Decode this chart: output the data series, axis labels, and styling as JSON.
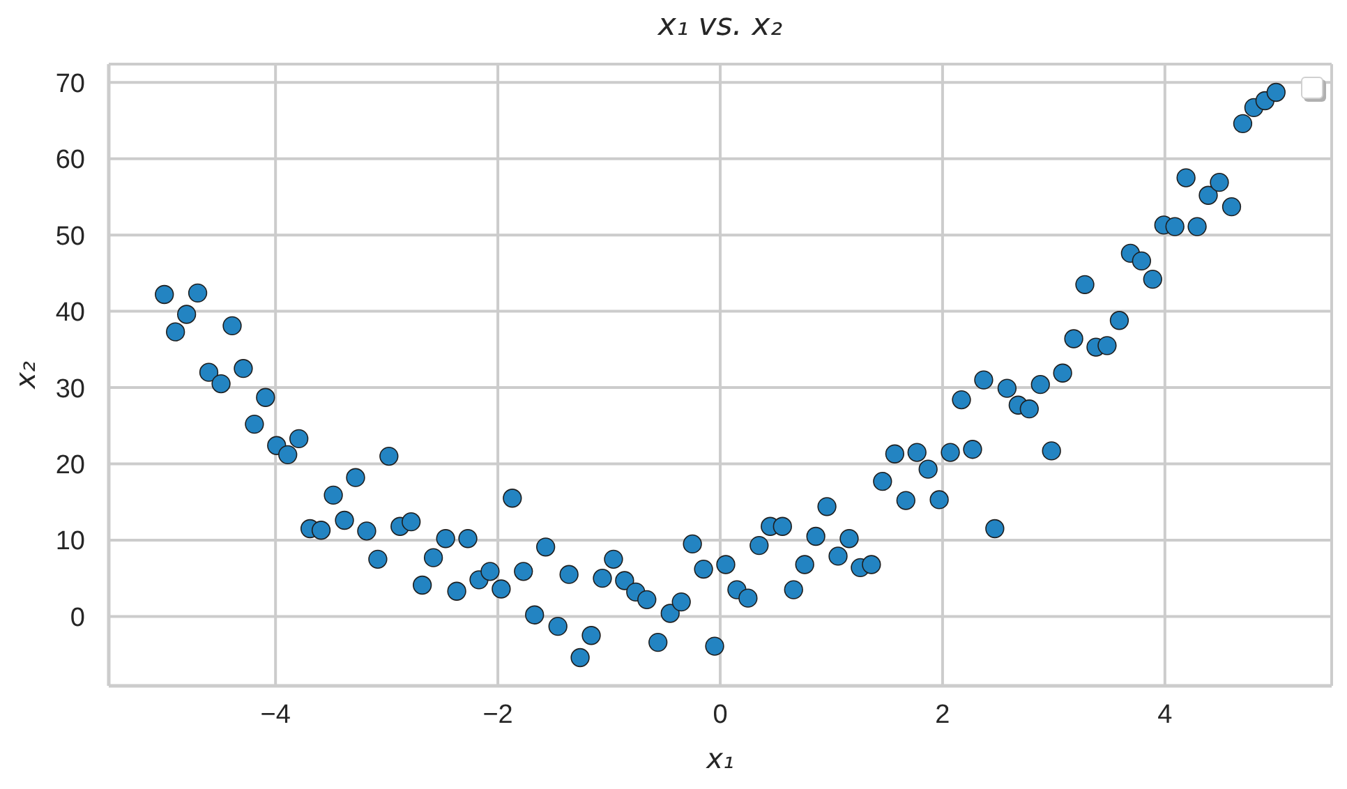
{
  "chart_data": {
    "type": "scatter",
    "title": "x₁ vs. x₂",
    "xlabel": "x₁",
    "ylabel": "x₂",
    "x": [
      -5.0,
      -4.9,
      -4.8,
      -4.7,
      -4.6,
      -4.49,
      -4.39,
      -4.29,
      -4.19,
      -4.09,
      -3.99,
      -3.89,
      -3.79,
      -3.69,
      -3.59,
      -3.48,
      -3.38,
      -3.28,
      -3.18,
      -3.08,
      -2.98,
      -2.88,
      -2.78,
      -2.68,
      -2.58,
      -2.47,
      -2.37,
      -2.27,
      -2.17,
      -2.07,
      -1.97,
      -1.87,
      -1.77,
      -1.67,
      -1.57,
      -1.46,
      -1.36,
      -1.26,
      -1.16,
      -1.06,
      -0.96,
      -0.86,
      -0.76,
      -0.66,
      -0.56,
      -0.45,
      -0.35,
      -0.25,
      -0.15,
      -0.05,
      0.05,
      0.15,
      0.25,
      0.35,
      0.45,
      0.56,
      0.66,
      0.76,
      0.86,
      0.96,
      1.06,
      1.16,
      1.26,
      1.36,
      1.46,
      1.57,
      1.67,
      1.77,
      1.87,
      1.97,
      2.07,
      2.17,
      2.27,
      2.37,
      2.47,
      2.58,
      2.68,
      2.78,
      2.88,
      2.98,
      3.08,
      3.18,
      3.28,
      3.38,
      3.48,
      3.59,
      3.69,
      3.79,
      3.89,
      3.99,
      4.09,
      4.19,
      4.29,
      4.39,
      4.49,
      4.6,
      4.7,
      4.8,
      4.9,
      5.0
    ],
    "values": [
      42.2,
      37.3,
      39.6,
      42.4,
      32.0,
      30.5,
      38.1,
      32.5,
      25.2,
      28.7,
      22.4,
      21.2,
      23.3,
      11.5,
      11.3,
      15.9,
      12.6,
      18.2,
      11.2,
      7.5,
      21.0,
      11.8,
      12.4,
      4.1,
      7.7,
      10.2,
      3.3,
      10.2,
      4.8,
      5.9,
      3.6,
      15.5,
      5.9,
      0.2,
      9.1,
      -1.3,
      5.5,
      -5.4,
      -2.5,
      5.0,
      7.5,
      4.7,
      3.2,
      2.2,
      -3.4,
      0.4,
      1.9,
      9.5,
      6.2,
      -3.9,
      6.8,
      3.5,
      2.4,
      9.3,
      11.8,
      11.8,
      3.5,
      6.8,
      10.5,
      14.4,
      7.9,
      10.2,
      6.4,
      6.8,
      17.7,
      21.3,
      15.2,
      21.5,
      19.3,
      15.3,
      21.5,
      28.4,
      21.9,
      31.0,
      11.5,
      29.9,
      27.7,
      27.2,
      30.4,
      21.7,
      31.9,
      36.4,
      43.5,
      35.3,
      35.5,
      38.8,
      47.6,
      46.6,
      44.2,
      51.3,
      51.1,
      57.5,
      51.1,
      55.2,
      56.9,
      53.7,
      64.6,
      66.7,
      67.6,
      68.7
    ],
    "color": "#2384c2",
    "marker": "circle",
    "xlim": [
      -5.5,
      5.5
    ],
    "xticks": [
      -4,
      -2,
      0,
      2,
      4
    ],
    "ylim": [
      -9.1,
      72.4
    ],
    "yticks": [
      0,
      10,
      20,
      30,
      40,
      50,
      60,
      70
    ],
    "grid": true
  }
}
